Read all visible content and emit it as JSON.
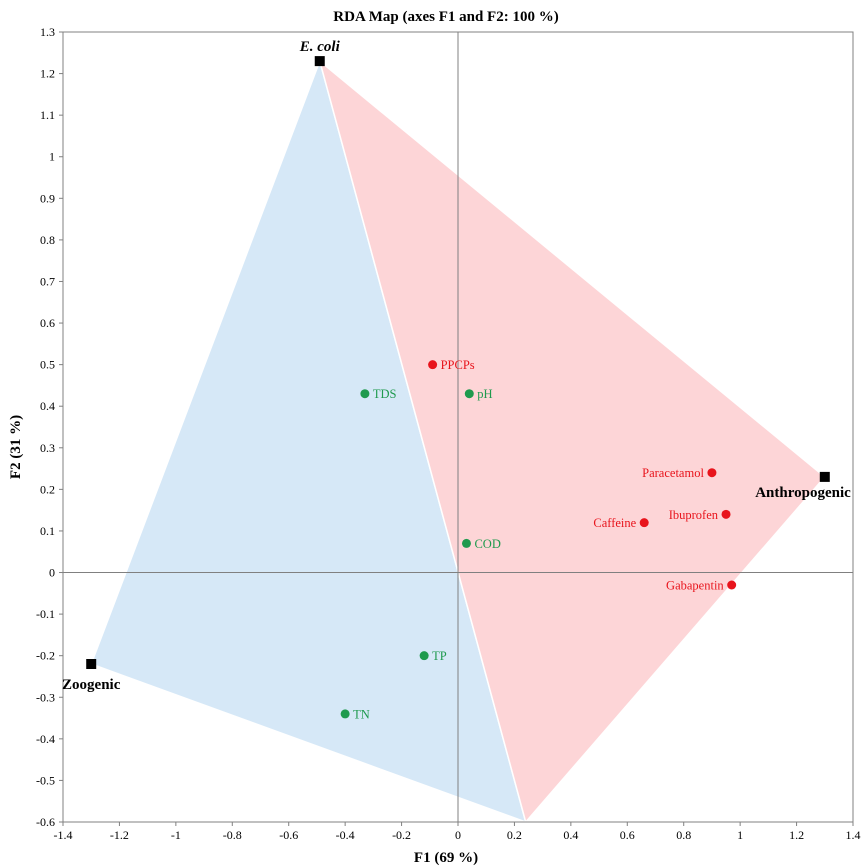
{
  "chart_data": {
    "type": "scatter",
    "title": "RDA Map (axes F1 and F2: 100 %)",
    "xlabel": "F1 (69 %)",
    "ylabel": "F2 (31 %)",
    "xlim": [
      -1.4,
      1.4
    ],
    "ylim": [
      -0.6,
      1.3
    ],
    "xticks": [
      -1.4,
      -1.2,
      -1,
      -0.8,
      -0.6,
      -0.4,
      -0.2,
      0,
      0.2,
      0.4,
      0.6,
      0.8,
      1,
      1.2,
      1.4
    ],
    "yticks": [
      -0.6,
      -0.5,
      -0.4,
      -0.3,
      -0.2,
      -0.1,
      0,
      0.1,
      0.2,
      0.3,
      0.4,
      0.5,
      0.6,
      0.7,
      0.8,
      0.9,
      1,
      1.1,
      1.2,
      1.3
    ],
    "grid": false,
    "colors": {
      "red": "#e8141c",
      "green": "#1f9a4e",
      "blue_region": "#d6e8f7",
      "red_region": "#fdd5d7",
      "anchor": "#000000"
    },
    "regions": [
      {
        "color": "blue_region",
        "vertices": [
          [
            -1.3,
            -0.22
          ],
          [
            -0.49,
            1.23
          ],
          [
            0.24,
            -0.6
          ]
        ]
      },
      {
        "color": "red_region",
        "vertices": [
          [
            -0.49,
            1.23
          ],
          [
            1.3,
            0.23
          ],
          [
            0.24,
            -0.6
          ]
        ]
      }
    ],
    "anchors": [
      {
        "label": "E. coli",
        "x": -0.49,
        "y": 1.23,
        "italic": true,
        "pos": "above"
      },
      {
        "label": "Anthropogenic",
        "x": 1.3,
        "y": 0.23,
        "italic": false,
        "pos": "below-left"
      },
      {
        "label": "Zoogenic",
        "x": -1.3,
        "y": -0.22,
        "italic": false,
        "pos": "below"
      }
    ],
    "series": [
      {
        "color": "red",
        "points": [
          {
            "label": "PPCPs",
            "x": -0.09,
            "y": 0.5,
            "pos": "right"
          },
          {
            "label": "Paracetamol",
            "x": 0.9,
            "y": 0.24,
            "pos": "left"
          },
          {
            "label": "Ibuprofen",
            "x": 0.95,
            "y": 0.14,
            "pos": "left"
          },
          {
            "label": "Caffeine",
            "x": 0.66,
            "y": 0.12,
            "pos": "left"
          },
          {
            "label": "Gabapentin",
            "x": 0.97,
            "y": -0.03,
            "pos": "left"
          }
        ]
      },
      {
        "color": "green",
        "points": [
          {
            "label": "TDS",
            "x": -0.33,
            "y": 0.43,
            "pos": "right"
          },
          {
            "label": "pH",
            "x": 0.04,
            "y": 0.43,
            "pos": "right"
          },
          {
            "label": "COD",
            "x": 0.03,
            "y": 0.07,
            "pos": "right"
          },
          {
            "label": "TP",
            "x": -0.12,
            "y": -0.2,
            "pos": "right"
          },
          {
            "label": "TN",
            "x": -0.4,
            "y": -0.34,
            "pos": "right"
          }
        ]
      }
    ]
  }
}
